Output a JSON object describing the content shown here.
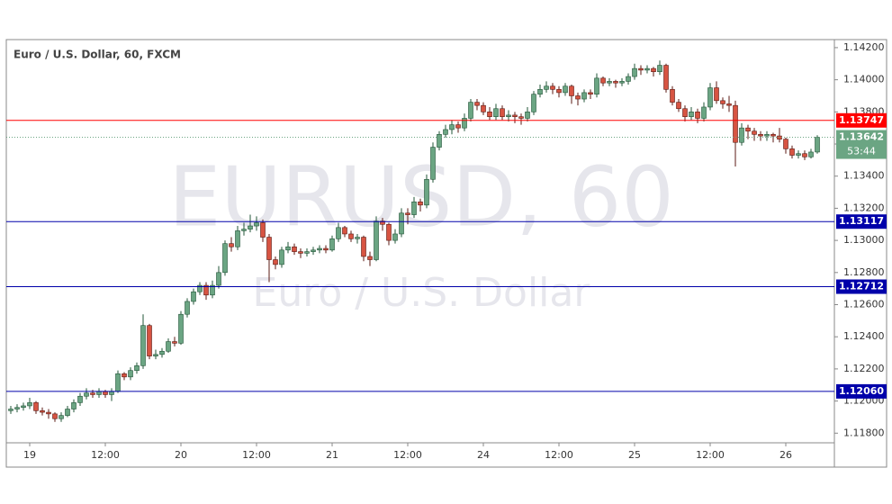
{
  "chart_data": {
    "type": "candlestick",
    "title": "Euro / U.S. Dollar, 60, FXCM",
    "watermark": {
      "symbol": "EURUSD, 60",
      "description": "Euro / U.S. Dollar"
    },
    "up_color": "#6ba583",
    "down_color": "#d75442",
    "grid": false,
    "ylim": [
      1.1174,
      1.1425
    ],
    "yticks": [
      {
        "value": 1.118,
        "label": "1.11800"
      },
      {
        "value": 1.12,
        "label": "1.12000"
      },
      {
        "value": 1.122,
        "label": "1.12200"
      },
      {
        "value": 1.124,
        "label": "1.12400"
      },
      {
        "value": 1.126,
        "label": "1.12600"
      },
      {
        "value": 1.128,
        "label": "1.12800"
      },
      {
        "value": 1.13,
        "label": "1.13000"
      },
      {
        "value": 1.132,
        "label": "1.13200"
      },
      {
        "value": 1.134,
        "label": "1.13400"
      },
      {
        "value": 1.136,
        "label": "1.13600"
      },
      {
        "value": 1.138,
        "label": "1.13800"
      },
      {
        "value": 1.14,
        "label": "1.14000"
      },
      {
        "value": 1.142,
        "label": "1.14200"
      }
    ],
    "levels": [
      {
        "value": 1.13747,
        "label": "1.13747",
        "color": "#ff0000"
      },
      {
        "value": 1.13117,
        "label": "1.13117",
        "color": "#0000aa"
      },
      {
        "value": 1.12712,
        "label": "1.12712",
        "color": "#0000aa"
      },
      {
        "value": 1.1206,
        "label": "1.12060",
        "color": "#0000aa"
      }
    ],
    "last_price": {
      "value": 1.13642,
      "label": "1.13642",
      "countdown": "53:44"
    },
    "categories": [
      null,
      null,
      null,
      "19",
      null,
      null,
      null,
      null,
      null,
      null,
      null,
      null,
      null,
      null,
      null,
      "12:00",
      null,
      null,
      null,
      null,
      null,
      null,
      null,
      null,
      null,
      null,
      null,
      "20",
      null,
      null,
      null,
      null,
      null,
      null,
      null,
      null,
      null,
      null,
      null,
      "12:00",
      null,
      null,
      null,
      null,
      null,
      null,
      null,
      null,
      null,
      null,
      null,
      "21",
      null,
      null,
      null,
      null,
      null,
      null,
      null,
      null,
      null,
      null,
      null,
      "12:00",
      null,
      null,
      null,
      null,
      null,
      null,
      null,
      null,
      null,
      null,
      null,
      "24",
      null,
      null,
      null,
      null,
      null,
      null,
      null,
      null,
      null,
      null,
      null,
      "12:00",
      null,
      null,
      null,
      null,
      null,
      null,
      null,
      null,
      null,
      null,
      null,
      "25",
      null,
      null,
      null,
      null,
      null,
      null,
      null,
      null,
      null,
      null,
      null,
      "12:00",
      null,
      null,
      null,
      null,
      null,
      null,
      null,
      null,
      null,
      null,
      null,
      "26",
      null,
      null,
      null,
      null,
      null
    ],
    "candles": [
      [
        1.1194,
        1.1197,
        1.1192,
        1.1195
      ],
      [
        1.1195,
        1.1198,
        1.1193,
        1.1196
      ],
      [
        1.1196,
        1.1199,
        1.1194,
        1.1197
      ],
      [
        1.1197,
        1.1202,
        1.1195,
        1.1199
      ],
      [
        1.1199,
        1.12,
        1.1192,
        1.1194
      ],
      [
        1.1194,
        1.1196,
        1.1191,
        1.1193
      ],
      [
        1.1193,
        1.1195,
        1.1189,
        1.1192
      ],
      [
        1.1192,
        1.1193,
        1.1187,
        1.1189
      ],
      [
        1.1189,
        1.1193,
        1.1187,
        1.1191
      ],
      [
        1.1191,
        1.1197,
        1.119,
        1.1195
      ],
      [
        1.1195,
        1.1201,
        1.1193,
        1.1199
      ],
      [
        1.1199,
        1.1205,
        1.1197,
        1.1203
      ],
      [
        1.1203,
        1.1208,
        1.1201,
        1.1205
      ],
      [
        1.1205,
        1.1207,
        1.1202,
        1.1204
      ],
      [
        1.1204,
        1.1208,
        1.1202,
        1.1206
      ],
      [
        1.1206,
        1.1207,
        1.1202,
        1.1204
      ],
      [
        1.1204,
        1.1208,
        1.12,
        1.1206
      ],
      [
        1.1206,
        1.1219,
        1.1205,
        1.1217
      ],
      [
        1.1217,
        1.1218,
        1.1213,
        1.1215
      ],
      [
        1.1215,
        1.1221,
        1.1213,
        1.1219
      ],
      [
        1.1219,
        1.1224,
        1.1217,
        1.1222
      ],
      [
        1.1222,
        1.1254,
        1.122,
        1.1247
      ],
      [
        1.1247,
        1.1248,
        1.1226,
        1.1228
      ],
      [
        1.1228,
        1.1232,
        1.1226,
        1.1229
      ],
      [
        1.1229,
        1.1233,
        1.1227,
        1.1231
      ],
      [
        1.1231,
        1.1239,
        1.123,
        1.1237
      ],
      [
        1.1237,
        1.124,
        1.1234,
        1.1236
      ],
      [
        1.1236,
        1.1256,
        1.1235,
        1.1254
      ],
      [
        1.1254,
        1.1264,
        1.1252,
        1.1262
      ],
      [
        1.1262,
        1.127,
        1.126,
        1.1268
      ],
      [
        1.1268,
        1.1274,
        1.1266,
        1.1272
      ],
      [
        1.1272,
        1.1274,
        1.1263,
        1.1266
      ],
      [
        1.1266,
        1.1275,
        1.1264,
        1.1272
      ],
      [
        1.1272,
        1.1284,
        1.127,
        1.128
      ],
      [
        1.128,
        1.13,
        1.1278,
        1.1298
      ],
      [
        1.1298,
        1.1302,
        1.1293,
        1.1296
      ],
      [
        1.1296,
        1.1309,
        1.1294,
        1.1306
      ],
      [
        1.1306,
        1.1311,
        1.1303,
        1.1307
      ],
      [
        1.1307,
        1.1316,
        1.1305,
        1.1309
      ],
      [
        1.1309,
        1.1315,
        1.1306,
        1.1311
      ],
      [
        1.1311,
        1.1313,
        1.1299,
        1.1302
      ],
      [
        1.1302,
        1.1304,
        1.1274,
        1.1288
      ],
      [
        1.1288,
        1.129,
        1.1282,
        1.1285
      ],
      [
        1.1285,
        1.1296,
        1.1283,
        1.1294
      ],
      [
        1.1294,
        1.1299,
        1.1292,
        1.1296
      ],
      [
        1.1296,
        1.1298,
        1.1291,
        1.1293
      ],
      [
        1.1293,
        1.1295,
        1.1289,
        1.1292
      ],
      [
        1.1292,
        1.1295,
        1.129,
        1.1293
      ],
      [
        1.1293,
        1.1296,
        1.1291,
        1.1294
      ],
      [
        1.1294,
        1.1297,
        1.1292,
        1.1295
      ],
      [
        1.1295,
        1.1297,
        1.1292,
        1.1294
      ],
      [
        1.1294,
        1.1303,
        1.1293,
        1.1301
      ],
      [
        1.1301,
        1.1311,
        1.1299,
        1.1308
      ],
      [
        1.1308,
        1.1309,
        1.1302,
        1.1304
      ],
      [
        1.1304,
        1.1306,
        1.1299,
        1.1301
      ],
      [
        1.1301,
        1.1304,
        1.1298,
        1.1302
      ],
      [
        1.1302,
        1.1303,
        1.1287,
        1.129
      ],
      [
        1.129,
        1.1293,
        1.1284,
        1.1288
      ],
      [
        1.1288,
        1.1315,
        1.1287,
        1.1312
      ],
      [
        1.1312,
        1.1314,
        1.1306,
        1.131
      ],
      [
        1.131,
        1.1311,
        1.1297,
        1.13
      ],
      [
        1.13,
        1.1307,
        1.1298,
        1.1304
      ],
      [
        1.1304,
        1.132,
        1.1302,
        1.1317
      ],
      [
        1.1317,
        1.132,
        1.131,
        1.1316
      ],
      [
        1.1316,
        1.1327,
        1.1314,
        1.1324
      ],
      [
        1.1324,
        1.1326,
        1.1318,
        1.1322
      ],
      [
        1.1322,
        1.1341,
        1.132,
        1.1338
      ],
      [
        1.1338,
        1.1361,
        1.1336,
        1.1358
      ],
      [
        1.1358,
        1.1368,
        1.1356,
        1.1366
      ],
      [
        1.1366,
        1.1372,
        1.1364,
        1.1369
      ],
      [
        1.1369,
        1.1375,
        1.1366,
        1.1372
      ],
      [
        1.1372,
        1.1374,
        1.1367,
        1.137
      ],
      [
        1.137,
        1.1379,
        1.1368,
        1.1376
      ],
      [
        1.1376,
        1.1388,
        1.1374,
        1.1386
      ],
      [
        1.1386,
        1.1388,
        1.1381,
        1.1384
      ],
      [
        1.1384,
        1.1386,
        1.1378,
        1.138
      ],
      [
        1.138,
        1.1383,
        1.1375,
        1.1377
      ],
      [
        1.1377,
        1.1385,
        1.1375,
        1.1382
      ],
      [
        1.1382,
        1.1384,
        1.1375,
        1.1377
      ],
      [
        1.1377,
        1.1381,
        1.1374,
        1.1378
      ],
      [
        1.1378,
        1.138,
        1.1373,
        1.1377
      ],
      [
        1.1377,
        1.1379,
        1.1372,
        1.1376
      ],
      [
        1.1376,
        1.1383,
        1.1374,
        1.138
      ],
      [
        1.138,
        1.1393,
        1.1378,
        1.1391
      ],
      [
        1.1391,
        1.1397,
        1.1389,
        1.1394
      ],
      [
        1.1394,
        1.1399,
        1.1392,
        1.1396
      ],
      [
        1.1396,
        1.1398,
        1.1391,
        1.1394
      ],
      [
        1.1394,
        1.1396,
        1.1389,
        1.1392
      ],
      [
        1.1392,
        1.1398,
        1.139,
        1.1396
      ],
      [
        1.1396,
        1.1397,
        1.1385,
        1.139
      ],
      [
        1.139,
        1.1392,
        1.1384,
        1.1388
      ],
      [
        1.1388,
        1.1394,
        1.1386,
        1.1392
      ],
      [
        1.1392,
        1.1394,
        1.1388,
        1.1391
      ],
      [
        1.1391,
        1.1404,
        1.1389,
        1.1401
      ],
      [
        1.1401,
        1.1402,
        1.1396,
        1.1398
      ],
      [
        1.1398,
        1.1401,
        1.1396,
        1.1399
      ],
      [
        1.1399,
        1.14,
        1.1395,
        1.1398
      ],
      [
        1.1398,
        1.1401,
        1.1396,
        1.1399
      ],
      [
        1.1399,
        1.1404,
        1.1397,
        1.1402
      ],
      [
        1.1402,
        1.141,
        1.14,
        1.1407
      ],
      [
        1.1407,
        1.1409,
        1.1403,
        1.1406
      ],
      [
        1.1406,
        1.1409,
        1.1404,
        1.1407
      ],
      [
        1.1407,
        1.1408,
        1.1402,
        1.1405
      ],
      [
        1.1405,
        1.1412,
        1.1403,
        1.1409
      ],
      [
        1.1409,
        1.141,
        1.1392,
        1.1394
      ],
      [
        1.1394,
        1.1396,
        1.1384,
        1.1386
      ],
      [
        1.1386,
        1.1388,
        1.138,
        1.1382
      ],
      [
        1.1382,
        1.1384,
        1.1374,
        1.1377
      ],
      [
        1.1377,
        1.1383,
        1.1375,
        1.138
      ],
      [
        1.138,
        1.1382,
        1.1373,
        1.1376
      ],
      [
        1.1376,
        1.1386,
        1.1374,
        1.1383
      ],
      [
        1.1383,
        1.1398,
        1.1381,
        1.1395
      ],
      [
        1.1395,
        1.1399,
        1.1385,
        1.1387
      ],
      [
        1.1387,
        1.1389,
        1.1382,
        1.1385
      ],
      [
        1.1385,
        1.139,
        1.138,
        1.1384
      ],
      [
        1.1384,
        1.1387,
        1.1346,
        1.1361
      ],
      [
        1.1361,
        1.1373,
        1.1359,
        1.137
      ],
      [
        1.137,
        1.1372,
        1.1363,
        1.1368
      ],
      [
        1.1368,
        1.137,
        1.1362,
        1.1366
      ],
      [
        1.1366,
        1.1368,
        1.1362,
        1.1365
      ],
      [
        1.1365,
        1.1368,
        1.1362,
        1.1366
      ],
      [
        1.1366,
        1.1367,
        1.1361,
        1.1365
      ],
      [
        1.1365,
        1.137,
        1.1361,
        1.1363
      ],
      [
        1.1363,
        1.1364,
        1.1354,
        1.1357
      ],
      [
        1.1357,
        1.1359,
        1.1351,
        1.1353
      ],
      [
        1.1353,
        1.1356,
        1.1351,
        1.1354
      ],
      [
        1.1354,
        1.1356,
        1.135,
        1.1352
      ],
      [
        1.1352,
        1.1357,
        1.1351,
        1.1355
      ],
      [
        1.1355,
        1.13655,
        1.1354,
        1.13642
      ]
    ]
  }
}
